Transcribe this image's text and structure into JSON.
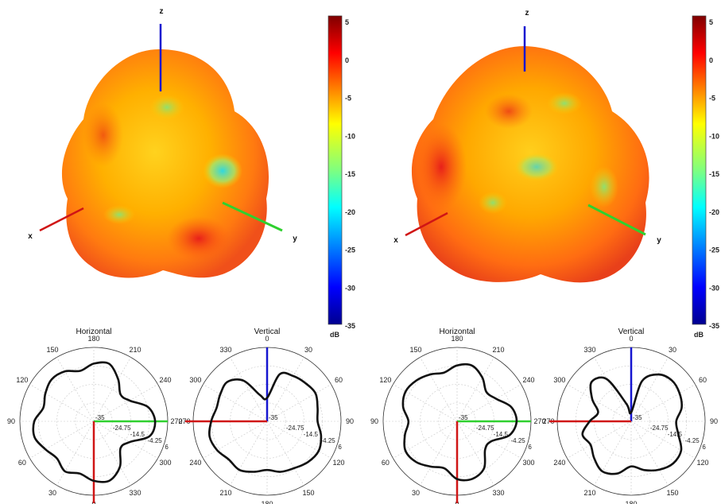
{
  "chart_data": [
    {
      "type": "heatmap",
      "description_kind": "3d-radiation-pattern",
      "axis_labels": {
        "x": "x",
        "y": "y",
        "z": "z"
      },
      "colorbar": {
        "ticks": [
          "5",
          "0",
          "-5",
          "-10",
          "-15",
          "-20",
          "-25",
          "-30",
          "-35"
        ],
        "unit": "dB",
        "range": [
          -35,
          5
        ]
      },
      "colors": {
        "low": "#00008f",
        "high": "#7f0000"
      }
    },
    {
      "type": "heatmap",
      "description_kind": "3d-radiation-pattern",
      "axis_labels": {
        "x": "x",
        "y": "y",
        "z": "z"
      },
      "colorbar": {
        "ticks": [
          "5",
          "0",
          "-5",
          "-10",
          "-15",
          "-20",
          "-25",
          "-30",
          "-35"
        ],
        "unit": "dB",
        "range": [
          -35,
          5
        ]
      },
      "colors": {
        "low": "#00008f",
        "high": "#7f0000"
      }
    },
    {
      "type": "line",
      "polar": true,
      "title": "Horizontal",
      "angle_labels": [
        "180",
        "150",
        "120",
        "90",
        "60",
        "30",
        "0",
        "330",
        "300",
        "270",
        "240",
        "210"
      ],
      "radial_labels": [
        "-35",
        "-24.75",
        "-14.5",
        "-4.25",
        "6"
      ],
      "rlim": [
        -35,
        6
      ],
      "theta_deg": [
        0,
        15,
        30,
        45,
        60,
        75,
        90,
        105,
        120,
        135,
        150,
        165,
        180,
        195,
        210,
        225,
        240,
        255,
        270,
        285,
        300,
        315,
        330,
        345
      ],
      "r_db": [
        -3,
        -2,
        -8,
        -14,
        -12,
        -4,
        -1,
        -3,
        -12,
        -14,
        -6,
        -1,
        -2,
        -5,
        -3,
        -6,
        -4,
        -1,
        -2,
        -6,
        -4,
        -2,
        -3,
        -6
      ]
    },
    {
      "type": "line",
      "polar": true,
      "title": "Vertical",
      "angle_labels": [
        "0",
        "330",
        "300",
        "270",
        "240",
        "210",
        "180",
        "150",
        "120",
        "90",
        "60",
        "30"
      ],
      "radial_labels": [
        "-35",
        "-24.75",
        "-14.5",
        "-4.25",
        "6"
      ],
      "rlim": [
        -35,
        6
      ],
      "theta_deg": [
        0,
        15,
        30,
        45,
        60,
        75,
        90,
        105,
        120,
        135,
        150,
        165,
        180,
        195,
        210,
        225,
        240,
        255,
        270,
        285,
        300,
        315,
        330,
        345
      ],
      "r_db": [
        -22,
        -8,
        -6,
        -5,
        -4,
        -6,
        -7,
        -4,
        -2,
        -3,
        -5,
        -6,
        -8,
        -6,
        -4,
        -5,
        -3,
        -2,
        -4,
        -6,
        -5,
        -4,
        -9,
        -20
      ]
    },
    {
      "type": "line",
      "polar": true,
      "title": "Horizontal",
      "angle_labels": [
        "180",
        "150",
        "120",
        "90",
        "60",
        "30",
        "0",
        "330",
        "300",
        "270",
        "240",
        "210"
      ],
      "radial_labels": [
        "-35",
        "-24.75",
        "-14.5",
        "-4.25",
        "6"
      ],
      "rlim": [
        -35,
        6
      ],
      "theta_deg": [
        0,
        15,
        30,
        45,
        60,
        75,
        90,
        105,
        120,
        135,
        150,
        165,
        180,
        195,
        210,
        225,
        240,
        255,
        270,
        285,
        300,
        315,
        330,
        345
      ],
      "r_db": [
        -4,
        -3,
        -7,
        -12,
        -10,
        -4,
        -2,
        -5,
        -13,
        -13,
        -5,
        -2,
        -3,
        -8,
        -6,
        -3,
        -2,
        -5,
        -8,
        -4,
        -2,
        -3,
        -5,
        -7
      ]
    },
    {
      "type": "line",
      "polar": true,
      "title": "Vertical",
      "angle_labels": [
        "0",
        "330",
        "300",
        "270",
        "240",
        "210",
        "180",
        "150",
        "120",
        "90",
        "60",
        "30"
      ],
      "radial_labels": [
        "-35",
        "-24.75",
        "-14.5",
        "-4.25",
        "6"
      ],
      "rlim": [
        -35,
        6
      ],
      "theta_deg": [
        0,
        15,
        30,
        45,
        60,
        75,
        90,
        105,
        120,
        135,
        150,
        165,
        180,
        195,
        210,
        225,
        240,
        255,
        270,
        285,
        300,
        315,
        330,
        345
      ],
      "r_db": [
        -30,
        -12,
        -5,
        -3,
        -4,
        -6,
        -10,
        -8,
        -3,
        -2,
        -4,
        -7,
        -10,
        -5,
        -3,
        -6,
        -9,
        -7,
        -12,
        -16,
        -10,
        -4,
        -8,
        -25
      ]
    }
  ]
}
